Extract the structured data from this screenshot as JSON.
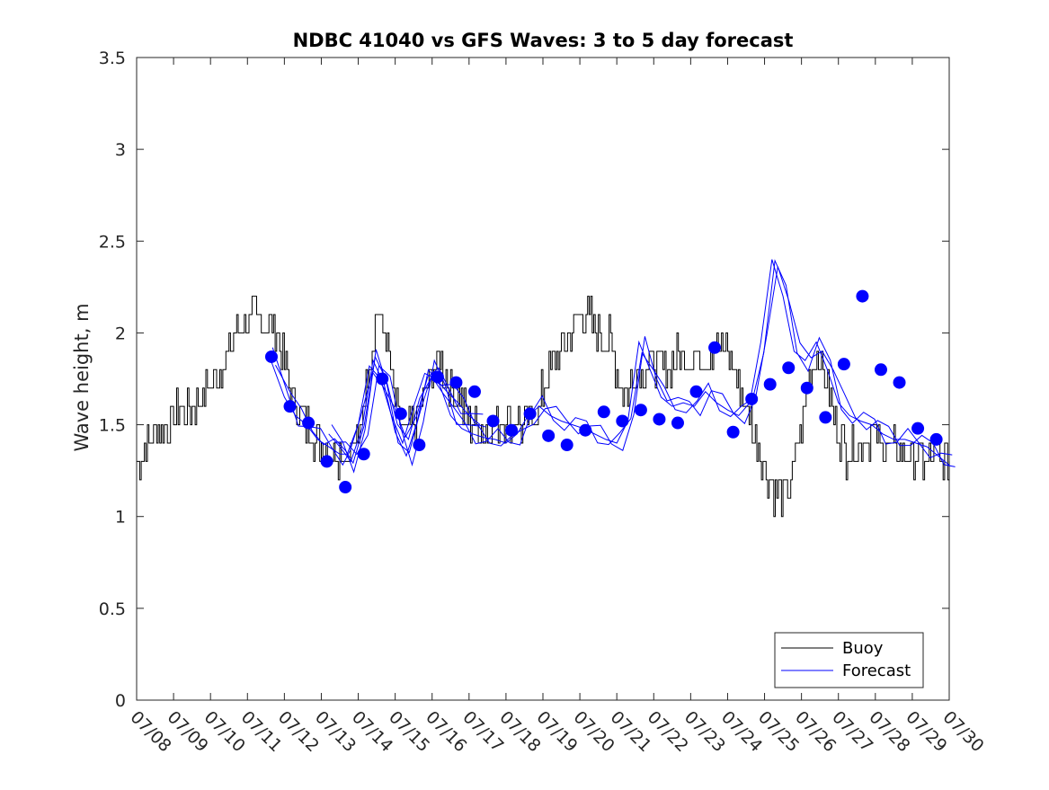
{
  "chart_data": {
    "type": "line",
    "title": "NDBC 41040 vs GFS Waves: 3 to 5 day forecast",
    "xlabel": "",
    "ylabel": "Wave height, m",
    "xlim": [
      "07/08",
      "07/30"
    ],
    "ylim": [
      0,
      3.5
    ],
    "y_ticks": [
      0,
      0.5,
      1,
      1.5,
      2,
      2.5,
      3,
      3.5
    ],
    "y_tick_labels": [
      "0",
      "0.5",
      "1",
      "1.5",
      "2",
      "2.5",
      "3",
      "3.5"
    ],
    "x_tick_labels": [
      "07/08",
      "07/09",
      "07/10",
      "07/11",
      "07/12",
      "07/13",
      "07/14",
      "07/15",
      "07/16",
      "07/17",
      "07/18",
      "07/19",
      "07/20",
      "07/21",
      "07/22",
      "07/23",
      "07/24",
      "07/25",
      "07/26",
      "07/27",
      "07/28",
      "07/29",
      "07/30"
    ],
    "x_tick_label_rotation": "-45deg",
    "grid": false,
    "box": true,
    "legend": {
      "location": "bottom-right",
      "entries": [
        {
          "label": "Buoy",
          "color": "#000000"
        },
        {
          "label": "Forecast",
          "color": "#0000ff"
        }
      ]
    },
    "colors": {
      "buoy": "#000000",
      "forecast": "#0000ff",
      "axes": "#262626"
    },
    "series": [
      {
        "name": "Buoy",
        "style": "thin line with rapid hourly fluctuations",
        "x_days_from_0708": [
          0,
          0.5,
          1,
          1.4,
          1.8,
          2.2,
          2.6,
          3,
          3.3,
          3.7,
          4,
          4.3,
          4.6,
          5,
          5.3,
          5.7,
          6,
          6.2,
          6.5,
          6.8,
          7,
          7.3,
          7.6,
          7.9,
          8.2,
          8.5,
          8.8,
          9.1,
          9.4,
          9.8,
          10.1,
          10.4,
          10.8,
          11.2,
          11.6,
          12,
          12.4,
          12.8,
          13.2,
          13.6,
          14,
          14.4,
          14.8,
          15.2,
          15.6,
          16,
          16.4,
          16.8,
          17.2,
          17.6,
          18,
          18.4,
          18.8,
          19.2,
          19.5,
          19.8,
          20.2,
          20.6,
          21,
          21.4,
          21.8,
          22
        ],
        "values": [
          1.3,
          1.45,
          1.55,
          1.6,
          1.65,
          1.8,
          1.95,
          2.05,
          2.1,
          2.05,
          1.85,
          1.6,
          1.5,
          1.4,
          1.35,
          1.35,
          1.4,
          1.75,
          2.1,
          1.95,
          1.6,
          1.45,
          1.55,
          1.75,
          1.85,
          1.7,
          1.6,
          1.5,
          1.45,
          1.5,
          1.55,
          1.5,
          1.55,
          1.8,
          1.95,
          2.1,
          2.05,
          1.95,
          1.65,
          1.8,
          1.85,
          1.8,
          1.9,
          1.85,
          1.9,
          1.9,
          1.65,
          1.4,
          1.15,
          1.1,
          1.5,
          1.95,
          1.6,
          1.35,
          1.4,
          1.45,
          1.4,
          1.35,
          1.3,
          1.3,
          1.3,
          1.3
        ]
      },
      {
        "name": "Forecast",
        "style": "multiple overlapping thin forecast runs",
        "runs": [
          {
            "x_days_from_0708": [
              3.6,
              4.0,
              4.3,
              4.6,
              4.9,
              5.2,
              5.5,
              5.7,
              6.0,
              6.3,
              6.6,
              6.9,
              7.2,
              7.5,
              7.8,
              8.1,
              8.4,
              8.7,
              9.0,
              9.3
            ],
            "values": [
              1.87,
              1.65,
              1.55,
              1.5,
              1.42,
              1.38,
              1.34,
              1.34,
              1.5,
              1.82,
              1.75,
              1.55,
              1.4,
              1.6,
              1.78,
              1.75,
              1.68,
              1.62,
              1.55,
              1.5
            ]
          },
          {
            "x_days_from_0708": [
              5.2,
              5.5,
              5.8,
              6.1,
              6.4,
              6.7,
              7.0,
              7.3,
              7.6,
              7.9,
              8.2,
              8.5,
              8.8,
              9.1,
              9.4,
              9.7,
              10.0,
              10.3,
              10.6,
              10.9,
              11.2,
              11.5,
              11.8,
              12.1,
              12.4,
              12.7,
              13.0,
              13.3,
              13.6,
              13.9,
              14.2,
              14.5,
              14.8,
              15.1,
              15.4,
              15.7,
              16.0,
              16.3,
              16.6,
              16.9,
              17.2,
              17.5,
              17.8,
              18.1,
              18.4,
              18.7,
              19.0,
              19.3,
              19.6,
              19.9,
              20.2,
              20.5,
              20.8,
              21.1,
              21.4,
              21.7,
              22.0
            ],
            "values": [
              1.45,
              1.38,
              1.3,
              1.48,
              1.85,
              1.72,
              1.46,
              1.33,
              1.52,
              1.8,
              1.72,
              1.55,
              1.48,
              1.45,
              1.43,
              1.42,
              1.4,
              1.45,
              1.55,
              1.6,
              1.55,
              1.52,
              1.5,
              1.48,
              1.45,
              1.42,
              1.4,
              1.52,
              1.95,
              1.8,
              1.65,
              1.6,
              1.62,
              1.6,
              1.68,
              1.62,
              1.58,
              1.55,
              1.62,
              1.95,
              2.4,
              2.2,
              1.9,
              1.85,
              1.95,
              1.8,
              1.62,
              1.55,
              1.52,
              1.5,
              1.45,
              1.42,
              1.42,
              1.4,
              1.38,
              1.33,
              1.28
            ]
          }
        ],
        "markers": {
          "symbol": "filled circle",
          "x_days_from_0708": [
            3.65,
            4.15,
            4.65,
            5.15,
            5.65,
            6.15,
            6.65,
            7.15,
            7.65,
            8.15,
            8.65,
            9.15,
            9.65,
            10.15,
            10.65,
            11.15,
            11.65,
            12.15,
            12.65,
            13.15,
            13.65,
            14.15,
            14.65,
            15.15,
            15.65,
            16.15,
            16.65,
            17.15,
            17.65,
            18.15,
            18.65,
            19.15,
            19.65,
            20.15,
            20.65,
            21.15,
            21.65
          ],
          "values": [
            1.87,
            1.6,
            1.51,
            1.3,
            1.16,
            1.34,
            1.75,
            1.56,
            1.39,
            1.76,
            1.73,
            1.68,
            1.52,
            1.47,
            1.56,
            1.44,
            1.39,
            1.47,
            1.57,
            1.52,
            1.58,
            1.53,
            1.51,
            1.68,
            1.92,
            1.46,
            1.64,
            1.72,
            1.81,
            1.7,
            1.54,
            1.83,
            2.2,
            1.8,
            1.73,
            1.48,
            1.42
          ]
        }
      }
    ]
  }
}
